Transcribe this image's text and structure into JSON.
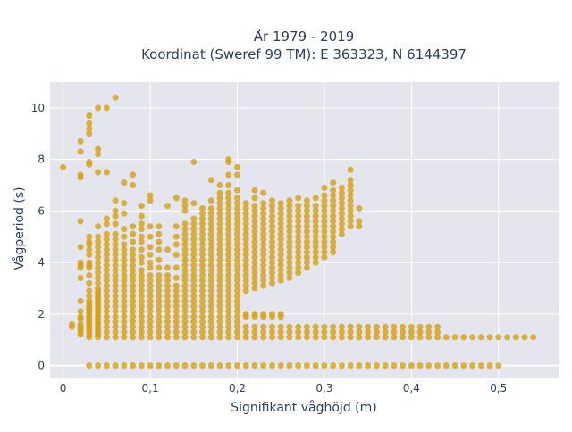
{
  "chart_data": {
    "type": "scatter",
    "title_line1": "År 1979 - 2019",
    "title_line2": "Koordinat (Sweref 99 TM): E 363323, N 6144397",
    "xlabel": "Signifikant våghöjd (m)",
    "ylabel": "Vågperiod (s)",
    "xlim": [
      -0.015,
      0.57
    ],
    "ylim": [
      -0.5,
      11
    ],
    "x_ticks": [
      {
        "value": 0,
        "label": "0"
      },
      {
        "value": 0.1,
        "label": "0,1"
      },
      {
        "value": 0.2,
        "label": "0,2"
      },
      {
        "value": 0.3,
        "label": "0,3"
      },
      {
        "value": 0.4,
        "label": "0,4"
      },
      {
        "value": 0.5,
        "label": "0,5"
      }
    ],
    "y_ticks": [
      {
        "value": 0,
        "label": "0"
      },
      {
        "value": 2,
        "label": "2"
      },
      {
        "value": 4,
        "label": "4"
      },
      {
        "value": 6,
        "label": "6"
      },
      {
        "value": 8,
        "label": "8"
      },
      {
        "value": 10,
        "label": "10"
      }
    ],
    "grid": true,
    "colors": {
      "point": "#d4a017",
      "plot_bg": "#e5e5ee",
      "grid": "#ffffff",
      "text": "#2a3f5f"
    },
    "columns": [
      {
        "x": 0.01,
        "y": [
          1.5,
          1.6
        ]
      },
      {
        "x": 0.02,
        "y": [
          1.2,
          1.3,
          1.4,
          1.5,
          1.6,
          1.8,
          1.9,
          2.1,
          2.5,
          3.4,
          3.8,
          3.9,
          4.0,
          4.6,
          5.6,
          7.3,
          7.4,
          8.3,
          8.7
        ]
      },
      {
        "x": 0.03,
        "y": [
          1.1,
          1.2,
          1.3,
          1.4,
          1.5,
          1.6,
          1.7,
          1.8,
          1.9,
          2.0,
          2.1,
          2.2,
          2.3,
          2.4,
          2.5,
          2.7,
          2.9,
          3.2,
          3.5,
          3.8,
          3.9,
          4.0,
          4.3,
          4.5,
          4.7,
          4.8,
          5.0,
          7.8,
          7.9,
          9.0,
          9.2,
          9.4,
          9.7
        ]
      },
      {
        "x": 0.04,
        "y": [
          1.1,
          1.2,
          1.3,
          1.4,
          1.5,
          1.6,
          1.7,
          1.8,
          1.9,
          2.0,
          2.1,
          2.2,
          2.3,
          2.4,
          2.5,
          2.6,
          2.7,
          2.8,
          2.9,
          3.0,
          3.2,
          3.4,
          3.6,
          3.8,
          4.0,
          4.2,
          4.4,
          4.6,
          4.8,
          5.0,
          5.4,
          7.5,
          8.2,
          8.4,
          10.0
        ]
      },
      {
        "x": 0.05,
        "y": [
          1.1,
          1.3,
          1.5,
          1.7,
          1.9,
          2.1,
          2.3,
          2.5,
          2.7,
          2.9,
          3.1,
          3.3,
          3.5,
          3.7,
          3.9,
          4.1,
          4.3,
          4.5,
          4.7,
          4.9,
          5.1,
          5.5,
          5.7,
          7.5,
          10.0
        ]
      },
      {
        "x": 0.06,
        "y": [
          1.1,
          1.3,
          1.5,
          1.7,
          1.9,
          2.1,
          2.3,
          2.5,
          2.7,
          2.9,
          3.1,
          3.3,
          3.5,
          3.7,
          3.9,
          4.1,
          4.3,
          4.5,
          4.7,
          4.9,
          5.1,
          5.5,
          5.8,
          6.0,
          6.4,
          10.4
        ]
      },
      {
        "x": 0.07,
        "y": [
          1.1,
          1.3,
          1.5,
          1.7,
          1.9,
          2.1,
          2.3,
          2.5,
          2.7,
          2.9,
          3.1,
          3.3,
          3.5,
          3.7,
          3.9,
          4.1,
          4.3,
          4.5,
          4.7,
          5.0,
          5.3,
          5.9,
          6.3,
          7.1
        ]
      },
      {
        "x": 0.08,
        "y": [
          1.1,
          1.3,
          1.5,
          1.7,
          1.9,
          2.1,
          2.3,
          2.5,
          2.7,
          2.9,
          3.1,
          3.3,
          3.5,
          3.7,
          3.9,
          4.1,
          4.3,
          4.5,
          4.8,
          5.1,
          5.4,
          7.0,
          7.4
        ]
      },
      {
        "x": 0.09,
        "y": [
          1.1,
          1.3,
          1.5,
          1.7,
          1.9,
          2.1,
          2.3,
          2.5,
          2.7,
          2.9,
          3.1,
          3.3,
          3.5,
          3.7,
          4.0,
          4.2,
          4.5,
          4.8,
          5.0,
          5.3,
          5.5,
          5.8,
          6.2
        ]
      },
      {
        "x": 0.1,
        "y": [
          1.1,
          1.3,
          1.5,
          1.7,
          1.9,
          2.1,
          2.3,
          2.5,
          2.7,
          2.9,
          3.1,
          3.3,
          3.5,
          3.8,
          4.0,
          4.3,
          4.6,
          5.0,
          5.4,
          6.4,
          6.6
        ]
      },
      {
        "x": 0.11,
        "y": [
          1.1,
          1.3,
          1.5,
          1.7,
          1.9,
          2.1,
          2.3,
          2.5,
          2.7,
          2.9,
          3.1,
          3.3,
          3.5,
          3.8,
          4.1,
          4.5,
          4.8,
          5.1,
          5.4
        ]
      },
      {
        "x": 0.12,
        "y": [
          1.1,
          1.3,
          1.5,
          1.7,
          1.9,
          2.1,
          2.3,
          2.5,
          2.7,
          2.9,
          3.1,
          3.3,
          3.5,
          3.8,
          4.5,
          6.2
        ]
      },
      {
        "x": 0.13,
        "y": [
          1.1,
          1.3,
          1.5,
          1.7,
          1.9,
          2.1,
          2.3,
          2.5,
          2.7,
          2.9,
          3.1,
          3.4,
          3.8,
          4.3,
          4.7,
          5.0,
          5.4,
          6.5
        ]
      },
      {
        "x": 0.14,
        "y": [
          1.1,
          1.3,
          1.5,
          1.7,
          1.9,
          2.1,
          2.3,
          2.5,
          2.7,
          2.9,
          3.1,
          3.3,
          3.5,
          3.7,
          3.9,
          4.1,
          4.3,
          4.5,
          4.7,
          4.9,
          5.1,
          5.3,
          5.5,
          6.0,
          6.2,
          6.4
        ]
      },
      {
        "x": 0.15,
        "y": [
          1.1,
          1.3,
          1.5,
          1.7,
          1.9,
          2.1,
          2.3,
          2.5,
          2.7,
          2.9,
          3.1,
          3.3,
          3.5,
          3.7,
          3.9,
          4.1,
          4.3,
          4.5,
          4.7,
          4.9,
          5.1,
          5.3,
          5.5,
          5.7,
          6.3,
          7.9
        ]
      },
      {
        "x": 0.16,
        "y": [
          1.1,
          1.3,
          1.5,
          1.7,
          1.9,
          2.1,
          2.3,
          2.5,
          2.7,
          2.9,
          3.1,
          3.3,
          3.5,
          3.7,
          3.9,
          4.1,
          4.3,
          4.5,
          4.7,
          4.9,
          5.1,
          5.3,
          5.5,
          5.7,
          5.9,
          6.1
        ]
      },
      {
        "x": 0.17,
        "y": [
          1.1,
          1.3,
          1.5,
          1.7,
          1.9,
          2.1,
          2.3,
          2.5,
          2.7,
          2.9,
          3.1,
          3.3,
          3.5,
          3.7,
          3.9,
          4.1,
          4.3,
          4.5,
          4.7,
          4.9,
          5.1,
          5.3,
          5.5,
          5.7,
          5.9,
          6.1,
          6.4,
          7.2
        ]
      },
      {
        "x": 0.18,
        "y": [
          1.1,
          1.3,
          1.5,
          1.7,
          1.9,
          2.1,
          2.3,
          2.5,
          2.7,
          2.9,
          3.1,
          3.3,
          3.5,
          3.7,
          3.9,
          4.1,
          4.3,
          4.5,
          4.7,
          4.9,
          5.1,
          5.3,
          5.5,
          5.7,
          5.9,
          6.1,
          6.3,
          6.5,
          6.7,
          7.0
        ]
      },
      {
        "x": 0.19,
        "y": [
          1.1,
          1.3,
          1.5,
          1.7,
          1.9,
          2.1,
          2.3,
          2.5,
          2.7,
          2.9,
          3.1,
          3.3,
          3.5,
          3.7,
          3.9,
          4.1,
          4.3,
          4.5,
          4.7,
          4.9,
          5.1,
          5.3,
          5.5,
          5.7,
          5.9,
          6.1,
          6.3,
          6.5,
          6.7,
          7.0,
          7.4,
          7.9,
          8.0
        ]
      },
      {
        "x": 0.2,
        "y": [
          1.1,
          1.3,
          1.5,
          1.7,
          1.9,
          2.1,
          2.3,
          2.5,
          2.7,
          2.9,
          3.1,
          3.3,
          3.5,
          3.7,
          3.9,
          4.1,
          4.3,
          4.5,
          4.7,
          4.9,
          5.1,
          5.3,
          5.5,
          5.7,
          5.9,
          6.1,
          6.3,
          6.5,
          6.8,
          7.4,
          7.7
        ]
      },
      {
        "x": 0.21,
        "y": [
          1.1,
          1.3,
          1.5,
          1.9,
          2.9,
          3.1,
          3.3,
          3.5,
          3.7,
          3.9,
          4.1,
          4.3,
          4.5,
          4.7,
          4.9,
          5.1,
          5.3,
          5.5,
          5.7,
          5.9,
          6.1,
          6.3
        ]
      },
      {
        "x": 0.22,
        "y": [
          1.1,
          1.3,
          1.5,
          1.9,
          3.0,
          3.2,
          3.4,
          3.6,
          3.8,
          4.0,
          4.2,
          4.4,
          4.6,
          4.8,
          5.0,
          5.2,
          5.4,
          5.6,
          5.8,
          6.0,
          6.2,
          6.5,
          6.8
        ]
      },
      {
        "x": 0.23,
        "y": [
          1.1,
          1.3,
          1.5,
          1.9,
          3.1,
          3.3,
          3.5,
          3.7,
          3.9,
          4.1,
          4.3,
          4.5,
          4.7,
          4.9,
          5.1,
          5.3,
          5.5,
          5.7,
          5.9,
          6.1,
          6.3,
          6.7
        ]
      },
      {
        "x": 0.24,
        "y": [
          1.1,
          1.3,
          1.5,
          1.9,
          3.2,
          3.4,
          3.6,
          3.8,
          4.0,
          4.2,
          4.4,
          4.6,
          4.8,
          5.0,
          5.2,
          5.4,
          5.6,
          5.8,
          6.0,
          6.2,
          6.4
        ]
      },
      {
        "x": 0.25,
        "y": [
          1.1,
          1.3,
          1.5,
          1.9,
          3.3,
          3.5,
          3.7,
          3.9,
          4.1,
          4.3,
          4.5,
          4.7,
          4.9,
          5.1,
          5.3,
          5.5,
          5.7,
          5.9,
          6.1,
          6.3
        ]
      },
      {
        "x": 0.26,
        "y": [
          1.1,
          1.3,
          1.5,
          3.4,
          3.6,
          3.8,
          4.0,
          4.2,
          4.4,
          4.6,
          4.8,
          5.0,
          5.2,
          5.4,
          5.6,
          5.8,
          6.0,
          6.2,
          6.4
        ]
      },
      {
        "x": 0.27,
        "y": [
          1.1,
          1.3,
          1.5,
          3.6,
          3.8,
          4.0,
          4.2,
          4.4,
          4.6,
          4.8,
          5.0,
          5.2,
          5.4,
          5.6,
          5.8,
          6.0,
          6.2,
          6.5
        ]
      },
      {
        "x": 0.28,
        "y": [
          1.1,
          1.3,
          1.5,
          3.8,
          4.0,
          4.2,
          4.4,
          4.6,
          4.8,
          5.0,
          5.2,
          5.4,
          5.6,
          5.8,
          6.0,
          6.2,
          6.4
        ]
      },
      {
        "x": 0.29,
        "y": [
          1.1,
          1.3,
          1.5,
          4.0,
          4.2,
          4.4,
          4.6,
          4.8,
          5.0,
          5.2,
          5.4,
          5.6,
          5.8,
          6.0,
          6.2,
          6.5
        ]
      },
      {
        "x": 0.3,
        "y": [
          1.1,
          1.3,
          1.5,
          4.2,
          4.4,
          4.6,
          4.8,
          5.0,
          5.2,
          5.4,
          5.6,
          5.8,
          6.0,
          6.2,
          6.4,
          6.6,
          6.9
        ]
      },
      {
        "x": 0.31,
        "y": [
          1.1,
          1.3,
          1.5,
          4.4,
          4.6,
          4.8,
          5.0,
          5.2,
          5.4,
          5.6,
          5.8,
          6.0,
          6.2,
          6.4,
          6.6,
          6.8,
          7.1
        ]
      },
      {
        "x": 0.32,
        "y": [
          1.1,
          1.3,
          1.5,
          5.1,
          5.3,
          5.5,
          5.7,
          5.9,
          6.1,
          6.3,
          6.5,
          6.7,
          6.9
        ]
      },
      {
        "x": 0.33,
        "y": [
          1.1,
          1.3,
          1.5,
          5.4,
          5.6,
          5.8,
          6.0,
          6.2,
          6.4,
          6.6,
          6.8,
          7.0,
          7.2,
          7.6
        ]
      },
      {
        "x": 0.34,
        "y": [
          1.1,
          1.3,
          1.5,
          5.4,
          5.6,
          6.1
        ]
      },
      {
        "x": 0.35,
        "y": [
          1.1,
          1.3,
          1.5
        ]
      },
      {
        "x": 0.36,
        "y": [
          1.1,
          1.3,
          1.5
        ]
      },
      {
        "x": 0.37,
        "y": [
          1.1,
          1.3,
          1.5
        ]
      },
      {
        "x": 0.38,
        "y": [
          1.1,
          1.3,
          1.5
        ]
      },
      {
        "x": 0.39,
        "y": [
          1.1,
          1.3,
          1.5
        ]
      },
      {
        "x": 0.4,
        "y": [
          1.1,
          1.3,
          1.5
        ]
      },
      {
        "x": 0.41,
        "y": [
          1.1,
          1.3,
          1.5
        ]
      },
      {
        "x": 0.42,
        "y": [
          1.1,
          1.3,
          1.5
        ]
      },
      {
        "x": 0.43,
        "y": [
          1.1,
          1.3,
          1.5
        ]
      },
      {
        "x": 0.44,
        "y": [
          1.1
        ]
      },
      {
        "x": 0.45,
        "y": [
          1.1
        ]
      },
      {
        "x": 0.46,
        "y": [
          1.1
        ]
      },
      {
        "x": 0.47,
        "y": [
          1.1
        ]
      },
      {
        "x": 0.48,
        "y": [
          1.1
        ]
      },
      {
        "x": 0.49,
        "y": [
          1.1
        ]
      },
      {
        "x": 0.5,
        "y": [
          1.1
        ]
      },
      {
        "x": 0.51,
        "y": [
          1.1
        ]
      },
      {
        "x": 0.52,
        "y": [
          1.1
        ]
      },
      {
        "x": 0.53,
        "y": [
          1.1
        ]
      },
      {
        "x": 0.54,
        "y": [
          1.1
        ]
      }
    ],
    "extra_points": [
      {
        "x": 0.0,
        "y": 7.7
      },
      {
        "x": 0.21,
        "y": 2.0
      },
      {
        "x": 0.22,
        "y": 2.0
      },
      {
        "x": 0.23,
        "y": 2.0
      },
      {
        "x": 0.24,
        "y": 2.0
      },
      {
        "x": 0.25,
        "y": 2.0
      }
    ],
    "zero_row": {
      "y": 0,
      "x_from": 0.03,
      "x_to": 0.5,
      "x_step": 0.01
    }
  }
}
